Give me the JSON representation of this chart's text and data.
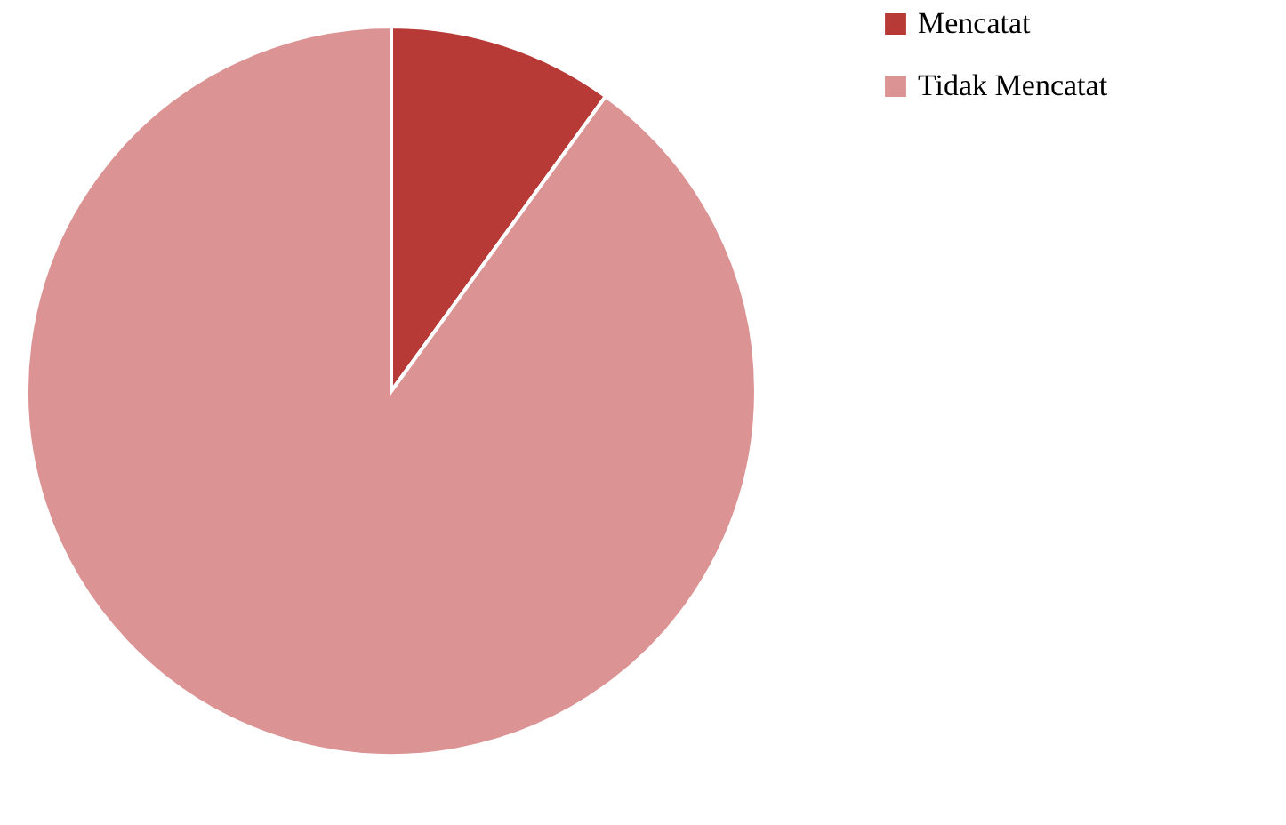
{
  "chart_data": {
    "type": "pie",
    "categories": [
      "Mencatat",
      "Tidak Mencatat"
    ],
    "values": [
      10,
      90
    ],
    "colors": [
      "#b73a37",
      "#dc9393"
    ],
    "legend": "right"
  }
}
